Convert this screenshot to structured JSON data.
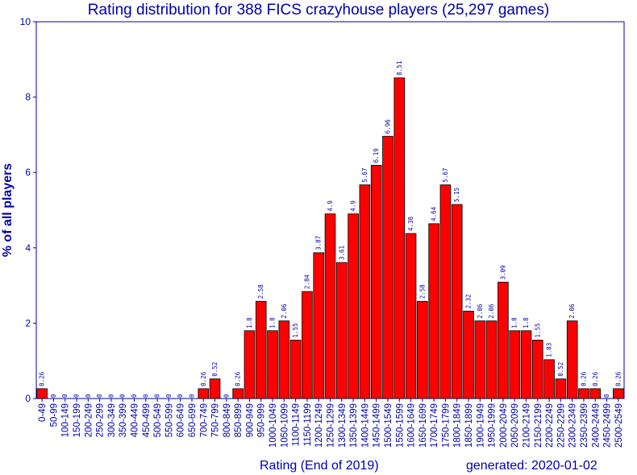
{
  "chart_data": {
    "type": "bar",
    "title": "Rating distribution for 388 FICS crazyhouse players (25,297 games)",
    "xlabel": "Rating (End of 2019)",
    "ylabel": "% of all players",
    "generated": "generated: 2020-01-02",
    "ylim": [
      0,
      10
    ],
    "yticks": [
      "0",
      "2",
      "4",
      "6",
      "8",
      "10"
    ],
    "categories": [
      "0-49",
      "50-99",
      "100-149",
      "150-199",
      "200-249",
      "250-299",
      "300-349",
      "350-399",
      "400-449",
      "450-499",
      "500-549",
      "550-599",
      "600-649",
      "650-699",
      "700-749",
      "750-799",
      "800-849",
      "850-899",
      "900-949",
      "950-999",
      "1000-1049",
      "1050-1099",
      "1100-1149",
      "1150-1199",
      "1200-1249",
      "1250-1299",
      "1300-1349",
      "1350-1399",
      "1400-1449",
      "1450-1499",
      "1500-1549",
      "1550-1599",
      "1600-1649",
      "1650-1699",
      "1700-1749",
      "1750-1799",
      "1800-1849",
      "1850-1899",
      "1900-1949",
      "1950-1999",
      "2000-2049",
      "2050-2099",
      "2100-2149",
      "2150-2199",
      "2200-2249",
      "2250-2299",
      "2300-2349",
      "2350-2399",
      "2400-2449",
      "2450-2499",
      "2500-2549"
    ],
    "values": [
      0.26,
      0,
      0,
      0,
      0,
      0,
      0,
      0,
      0,
      0,
      0,
      0,
      0,
      0,
      0.26,
      0.52,
      0,
      0.26,
      1.8,
      2.58,
      1.8,
      2.06,
      1.55,
      2.84,
      3.87,
      4.9,
      3.61,
      4.9,
      5.67,
      6.19,
      6.96,
      8.51,
      4.38,
      2.58,
      4.64,
      5.67,
      5.15,
      2.32,
      2.06,
      2.06,
      3.09,
      1.8,
      1.8,
      1.55,
      1.03,
      0.52,
      2.06,
      0.26,
      0.26,
      0,
      0.26
    ],
    "data_labels": [
      "0.26",
      "0",
      "0",
      "0",
      "0",
      "0",
      "0",
      "0",
      "0",
      "0",
      "0",
      "0",
      "0",
      "0",
      "0.26",
      "0.52",
      "0",
      "0.26",
      "1.8",
      "2.58",
      "1.8",
      "2.06",
      "1.55",
      "2.84",
      "3.87",
      "4.9",
      "3.61",
      "4.9",
      "5.67",
      "6.19",
      "6.96",
      "8.51",
      "4.38",
      "2.58",
      "4.64",
      "5.67",
      "5.15",
      "2.32",
      "2.06",
      "2.06",
      "3.09",
      "1.8",
      "1.8",
      "1.55",
      "1.03",
      "0.52",
      "2.06",
      "0.26",
      "0.26",
      "0",
      "0.26"
    ],
    "grid": false,
    "legend": "none",
    "colors": {
      "bar_fill": "#ff0000",
      "bar_stroke": "#000000",
      "axis": "#0000aa",
      "text": "#0000aa"
    }
  }
}
